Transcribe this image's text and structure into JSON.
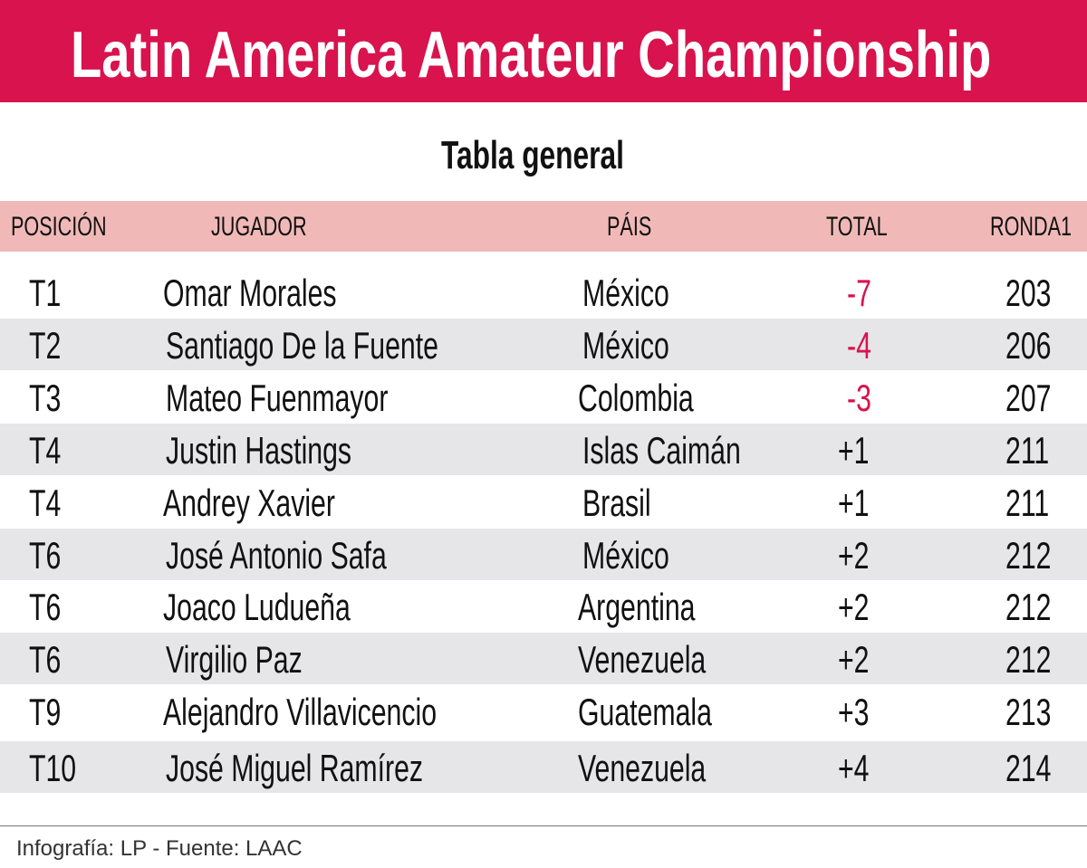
{
  "title": "Latin America Amateur Championship",
  "subtitle": "Tabla general",
  "headers": [
    "POSICIÓN",
    "JUGADOR",
    "PÁIS",
    "TOTAL",
    "RONDA1"
  ],
  "rows": [
    {
      "pos": "T1",
      "player": "Omar Morales",
      "country": "México",
      "total": "-7",
      "round1": "203"
    },
    {
      "pos": "T2",
      "player": "Santiago De la Fuente",
      "country": "México",
      "total": "-4",
      "round1": "206"
    },
    {
      "pos": "T3",
      "player": "Mateo Fuenmayor",
      "country": "Colombia",
      "total": "-3",
      "round1": "207"
    },
    {
      "pos": "T4",
      "player": "Justin Hastings",
      "country": "Islas Caimán",
      "total": "+1",
      "round1": "211"
    },
    {
      "pos": "T4",
      "player": "Andrey Xavier",
      "country": "Brasil",
      "total": "+1",
      "round1": "211"
    },
    {
      "pos": "T6",
      "player": "José Antonio Safa",
      "country": "México",
      "total": "+2",
      "round1": "212"
    },
    {
      "pos": "T6",
      "player": "Joaco Ludueña",
      "country": "Argentina",
      "total": "+2",
      "round1": "212"
    },
    {
      "pos": "T6",
      "player": "Virgilio Paz",
      "country": "Venezuela",
      "total": "+2",
      "round1": "212"
    },
    {
      "pos": "T9",
      "player": "Alejandro Villavicencio",
      "country": "Guatemala",
      "total": "+3",
      "round1": "213"
    },
    {
      "pos": "T10",
      "player": "José Miguel Ramírez",
      "country": "Venezuela",
      "total": "+4",
      "round1": "214"
    }
  ],
  "footer": "Infografía: LP - Fuente: LAAC",
  "colors": {
    "brand": "#d8134e",
    "header_bg": "#f0b9b8",
    "stripe": "#e6e6e8"
  }
}
